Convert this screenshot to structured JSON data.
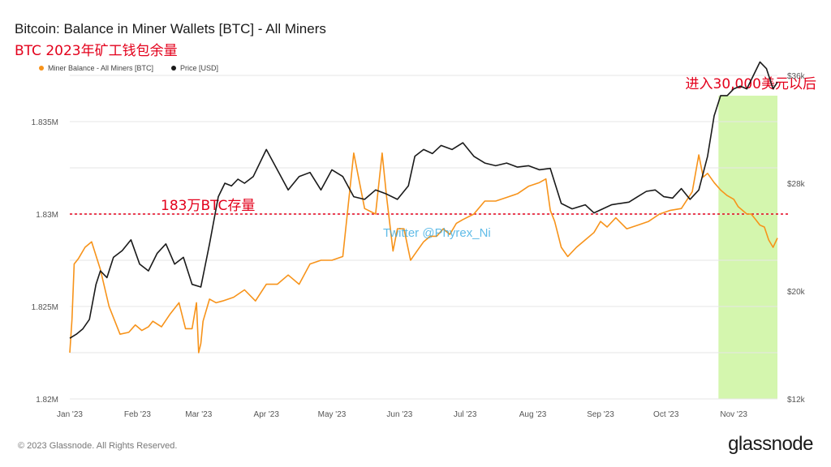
{
  "title": "Bitcoin: Balance in Miner Wallets [BTC] - All Miners",
  "subtitle": "BTC 2023年矿工钱包余量",
  "footer": {
    "copyright": "© 2023 Glassnode. All Rights Reserved.",
    "brand": "glassnode"
  },
  "colors": {
    "balance": "#f7931a",
    "price": "#1a1a1a",
    "annotation": "#e3001b",
    "highlight": "#ccf5a0",
    "watermark": "#2aa5e0"
  },
  "chart_data": {
    "type": "line",
    "x_ticks": [
      "Jan '23",
      "Feb '23",
      "Mar '23",
      "Apr '23",
      "May '23",
      "Jun '23",
      "Jul '23",
      "Aug '23",
      "Sep '23",
      "Oct '23",
      "Nov '23"
    ],
    "y_left": {
      "ticks": [
        "1.82M",
        "1.825M",
        "1.83M",
        "1.835M"
      ],
      "range": [
        1.82,
        1.8375
      ]
    },
    "y_right": {
      "ticks": [
        "$12k",
        "$20k",
        "$28k",
        "$36k"
      ],
      "range": [
        12,
        36
      ]
    },
    "legend": [
      "Miner Balance - All Miners [BTC]",
      "Price [USD]"
    ],
    "series": [
      {
        "name": "Miner Balance - All Miners [BTC]",
        "axis": "left",
        "x": [
          0,
          1,
          2,
          4,
          7,
          10,
          14,
          18,
          23,
          27,
          30,
          33,
          36,
          38,
          42,
          46,
          50,
          53,
          56,
          58,
          59,
          60,
          61,
          64,
          67,
          70,
          75,
          80,
          85,
          90,
          95,
          100,
          105,
          110,
          115,
          120,
          125,
          130,
          135,
          140,
          143,
          145,
          146,
          148,
          150,
          153,
          156,
          159,
          162,
          165,
          168,
          171,
          174,
          177,
          180,
          185,
          190,
          195,
          200,
          205,
          210,
          215,
          218,
          220,
          222,
          225,
          228,
          232,
          236,
          240,
          243,
          246,
          250,
          255,
          260,
          265,
          270,
          275,
          280,
          285,
          288,
          290,
          292,
          295,
          298,
          301,
          304,
          306,
          308,
          310,
          312,
          314,
          316,
          318,
          320,
          322,
          324
        ],
        "values": [
          1.8225,
          1.8243,
          1.8273,
          1.8276,
          1.8282,
          1.8285,
          1.827,
          1.825,
          1.8235,
          1.8236,
          1.824,
          1.8237,
          1.8239,
          1.8242,
          1.8239,
          1.8246,
          1.8252,
          1.8238,
          1.8238,
          1.8252,
          1.8225,
          1.823,
          1.8242,
          1.8254,
          1.8252,
          1.8253,
          1.8255,
          1.8259,
          1.8253,
          1.8262,
          1.8262,
          1.8267,
          1.8262,
          1.8273,
          1.8275,
          1.8275,
          1.8277,
          1.8333,
          1.8303,
          1.83,
          1.8333,
          1.831,
          1.83,
          1.828,
          1.8292,
          1.8292,
          1.8275,
          1.828,
          1.8285,
          1.8288,
          1.8288,
          1.8292,
          1.8289,
          1.8295,
          1.8297,
          1.83,
          1.8307,
          1.8307,
          1.8309,
          1.8311,
          1.8315,
          1.8317,
          1.8319,
          1.8302,
          1.8296,
          1.8282,
          1.8277,
          1.8282,
          1.8286,
          1.829,
          1.8296,
          1.8293,
          1.8298,
          1.8292,
          1.8294,
          1.8296,
          1.83,
          1.8302,
          1.8303,
          1.8312,
          1.8332,
          1.832,
          1.8322,
          1.8317,
          1.8313,
          1.831,
          1.8308,
          1.8304,
          1.8302,
          1.83,
          1.83,
          1.8297,
          1.8294,
          1.8293,
          1.8286,
          1.8282,
          1.8287
        ]
      },
      {
        "name": "Price [USD]",
        "axis": "right",
        "x": [
          0,
          3,
          6,
          9,
          12,
          14,
          17,
          20,
          24,
          28,
          32,
          36,
          40,
          44,
          48,
          52,
          56,
          60,
          64,
          68,
          71,
          74,
          77,
          80,
          84,
          90,
          95,
          100,
          105,
          110,
          115,
          120,
          125,
          130,
          135,
          140,
          145,
          150,
          155,
          158,
          162,
          166,
          170,
          175,
          180,
          185,
          190,
          195,
          200,
          205,
          210,
          215,
          220,
          225,
          230,
          236,
          240,
          244,
          248,
          252,
          256,
          260,
          264,
          268,
          272,
          276,
          280,
          284,
          288,
          292,
          295,
          298,
          301,
          304,
          307,
          310,
          313,
          316,
          319,
          322,
          324
        ],
        "values": [
          16.5,
          16.8,
          17.2,
          17.9,
          20.5,
          21.5,
          21.0,
          22.5,
          23.0,
          23.8,
          22.0,
          21.5,
          22.8,
          23.5,
          22.0,
          22.5,
          20.5,
          20.3,
          23.5,
          27.0,
          28.0,
          27.8,
          28.3,
          28.0,
          28.5,
          30.5,
          29.0,
          27.5,
          28.5,
          28.8,
          27.5,
          29.0,
          28.5,
          27.0,
          26.8,
          27.5,
          27.2,
          26.8,
          27.8,
          30.0,
          30.5,
          30.2,
          30.8,
          30.5,
          31.0,
          30.0,
          29.5,
          29.3,
          29.5,
          29.2,
          29.3,
          29.0,
          29.1,
          26.5,
          26.1,
          26.4,
          25.8,
          26.1,
          26.4,
          26.5,
          26.6,
          27.0,
          27.4,
          27.5,
          27.0,
          26.9,
          27.6,
          26.8,
          27.5,
          30.0,
          33.0,
          34.5,
          34.5,
          35.0,
          35.2,
          35.0,
          36.0,
          37.0,
          36.5,
          35.0,
          35.5
        ]
      }
    ],
    "highlight_region": {
      "x_start": 297,
      "x_end": 324,
      "label": "进入30,000美元以后"
    },
    "reference_line": {
      "value": 1.83,
      "label": "183万BTC存量"
    },
    "watermark": "Twitter @Phyrex_Ni",
    "grid": true
  }
}
